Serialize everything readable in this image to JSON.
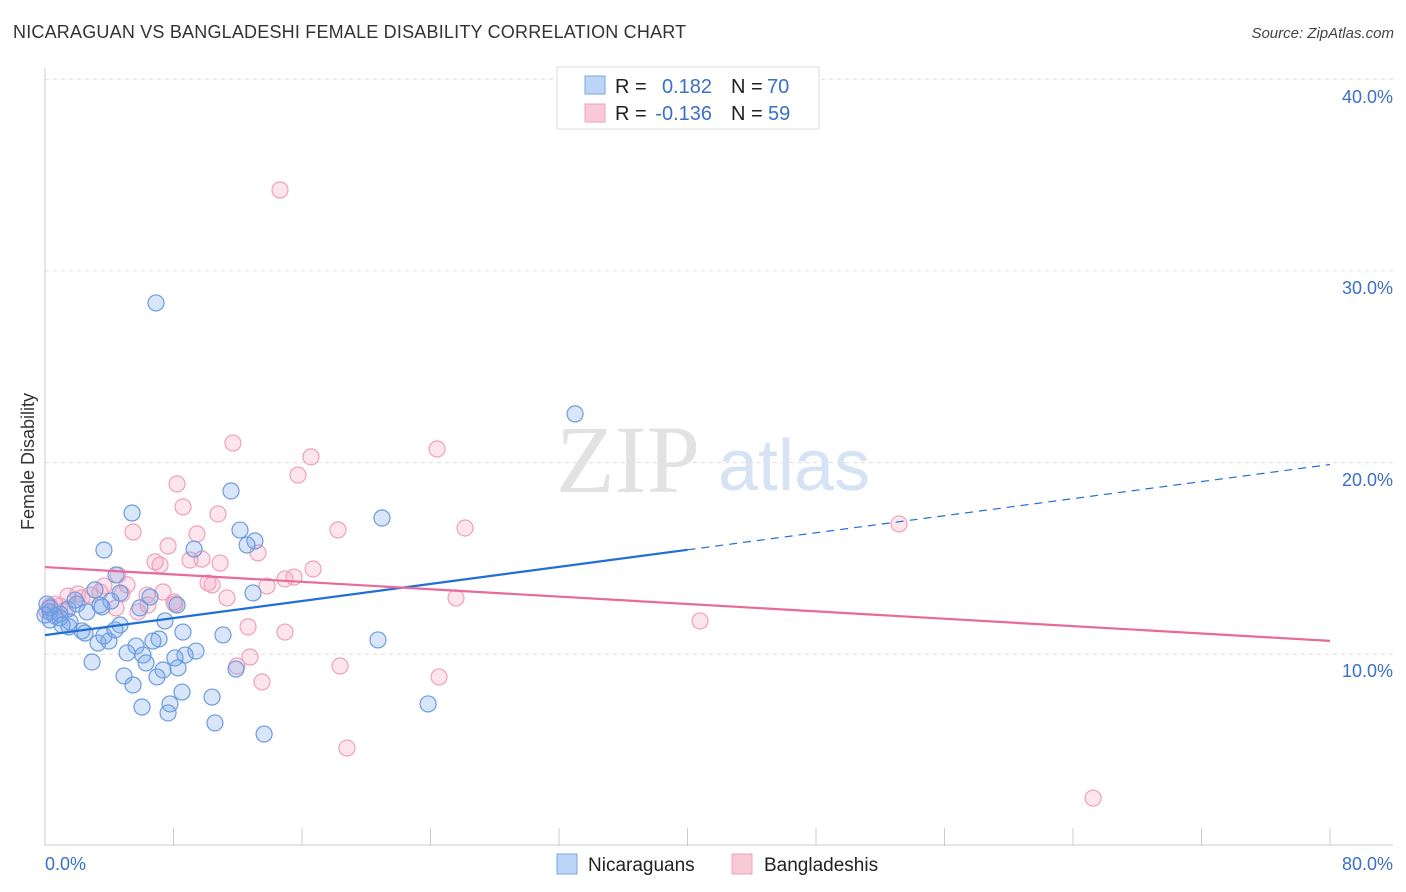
{
  "title": "NICARAGUAN VS BANGLADESHI FEMALE DISABILITY CORRELATION CHART",
  "source": "Source: ZipAtlas.com",
  "watermark": {
    "zip": "ZIP",
    "atlas": "atlas"
  },
  "colors": {
    "blue": "#6b9be0",
    "blue_line": "#1f6fd6",
    "pink": "#f0a0b8",
    "pink_line": "#e8699a",
    "tick": "#3a70c8"
  },
  "legend": {
    "r_label": "R =",
    "n_label": "N =",
    "rows": [
      {
        "r": "0.182",
        "n": "70"
      },
      {
        "r": "-0.136",
        "n": "59"
      }
    ]
  },
  "chart_data": {
    "type": "scatter",
    "title": "NICARAGUAN VS BANGLADESHI FEMALE DISABILITY CORRELATION CHART",
    "xlabel": "",
    "ylabel": "Female Disability",
    "xlim": [
      0,
      80
    ],
    "ylim": [
      0,
      40
    ],
    "x_tick_labels": [
      "0.0%",
      "80.0%"
    ],
    "y_ticks": [
      10,
      20,
      30,
      40
    ],
    "y_tick_labels": [
      "10.0%",
      "20.0%",
      "30.0%",
      "40.0%"
    ],
    "grid": true,
    "legend_position": "top-center",
    "series": [
      {
        "name": "Nicaraguans",
        "trend": {
          "x0": 0,
          "y0": 11.0,
          "x1": 80,
          "y1": 19.9,
          "solid_until": 40
        },
        "points": [
          [
            6.91,
            28.33
          ],
          [
            33.0,
            22.54
          ],
          [
            11.58,
            18.52
          ],
          [
            5.42,
            17.37
          ],
          [
            20.98,
            17.11
          ],
          [
            12.14,
            16.48
          ],
          [
            13.07,
            15.91
          ],
          [
            12.58,
            15.7
          ],
          [
            3.67,
            15.44
          ],
          [
            9.28,
            15.49
          ],
          [
            4.42,
            14.14
          ],
          [
            3.11,
            13.36
          ],
          [
            4.67,
            13.2
          ],
          [
            6.54,
            12.99
          ],
          [
            4.11,
            12.78
          ],
          [
            1.99,
            12.62
          ],
          [
            3.42,
            12.57
          ],
          [
            1.43,
            12.36
          ],
          [
            0.93,
            12.1
          ],
          [
            8.22,
            12.57
          ],
          [
            5.91,
            12.42
          ],
          [
            0.31,
            12.21
          ],
          [
            0.62,
            12.0
          ],
          [
            7.47,
            11.74
          ],
          [
            4.67,
            11.53
          ],
          [
            1.49,
            11.43
          ],
          [
            2.3,
            11.22
          ],
          [
            2.49,
            11.11
          ],
          [
            8.59,
            11.16
          ],
          [
            11.08,
            11.01
          ],
          [
            7.1,
            10.8
          ],
          [
            6.72,
            10.69
          ],
          [
            20.73,
            10.75
          ],
          [
            3.3,
            10.59
          ],
          [
            3.98,
            10.69
          ],
          [
            5.67,
            10.43
          ],
          [
            5.11,
            10.07
          ],
          [
            9.4,
            10.17
          ],
          [
            8.72,
            9.96
          ],
          [
            6.1,
            9.96
          ],
          [
            8.09,
            9.81
          ],
          [
            6.29,
            9.55
          ],
          [
            2.93,
            9.6
          ],
          [
            7.35,
            9.18
          ],
          [
            8.28,
            9.29
          ],
          [
            11.89,
            9.23
          ],
          [
            4.92,
            8.87
          ],
          [
            6.97,
            8.82
          ],
          [
            8.53,
            8.03
          ],
          [
            5.48,
            8.4
          ],
          [
            10.4,
            7.77
          ],
          [
            23.85,
            7.41
          ],
          [
            6.04,
            7.25
          ],
          [
            7.78,
            7.41
          ],
          [
            7.66,
            6.94
          ],
          [
            10.58,
            6.42
          ],
          [
            13.64,
            5.84
          ],
          [
            0.12,
            12.62
          ],
          [
            0.31,
            11.79
          ],
          [
            0,
            12.05
          ],
          [
            0.93,
            11.9
          ],
          [
            1.56,
            11.69
          ],
          [
            2.61,
            12.21
          ],
          [
            3.67,
            10.96
          ],
          [
            12.95,
            13.2
          ],
          [
            0.31,
            12.42
          ],
          [
            1.87,
            12.83
          ],
          [
            4.36,
            11.27
          ],
          [
            1.06,
            11.53
          ],
          [
            3.55,
            12.47
          ]
        ]
      },
      {
        "name": "Bangladeshis",
        "trend": {
          "x0": 0,
          "y0": 14.55,
          "x1": 80,
          "y1": 10.7,
          "solid_until": 80
        },
        "points": [
          [
            14.63,
            34.22
          ],
          [
            11.7,
            21.02
          ],
          [
            24.41,
            20.71
          ],
          [
            16.56,
            20.3
          ],
          [
            15.75,
            19.35
          ],
          [
            8.22,
            18.89
          ],
          [
            8.59,
            17.69
          ],
          [
            10.77,
            17.32
          ],
          [
            26.15,
            16.59
          ],
          [
            18.24,
            16.49
          ],
          [
            53.17,
            16.8
          ],
          [
            5.48,
            16.38
          ],
          [
            9.46,
            16.28
          ],
          [
            13.26,
            15.29
          ],
          [
            7.66,
            15.65
          ],
          [
            6.85,
            14.82
          ],
          [
            7.16,
            14.66
          ],
          [
            9.03,
            14.92
          ],
          [
            9.77,
            14.97
          ],
          [
            10.9,
            14.76
          ],
          [
            16.69,
            14.45
          ],
          [
            4.55,
            14.14
          ],
          [
            15.5,
            14.03
          ],
          [
            14.94,
            13.93
          ],
          [
            3.67,
            13.56
          ],
          [
            5.11,
            13.62
          ],
          [
            13.82,
            13.56
          ],
          [
            10.15,
            13.72
          ],
          [
            10.4,
            13.62
          ],
          [
            7.35,
            13.25
          ],
          [
            4.79,
            13.15
          ],
          [
            6.35,
            13.09
          ],
          [
            3.42,
            13.25
          ],
          [
            2.05,
            13.15
          ],
          [
            2.8,
            13.09
          ],
          [
            1.43,
            13.04
          ],
          [
            0.62,
            12.62
          ],
          [
            0.93,
            12.52
          ],
          [
            6.41,
            12.57
          ],
          [
            8.09,
            12.62
          ],
          [
            11.33,
            12.94
          ],
          [
            8.03,
            12.73
          ],
          [
            25.59,
            12.94
          ],
          [
            5.79,
            12.21
          ],
          [
            0.12,
            12.26
          ],
          [
            40.78,
            11.74
          ],
          [
            12.64,
            11.43
          ],
          [
            14.94,
            11.16
          ],
          [
            4.42,
            12.42
          ],
          [
            12.76,
            9.86
          ],
          [
            18.37,
            9.39
          ],
          [
            11.95,
            9.39
          ],
          [
            13.51,
            8.56
          ],
          [
            24.53,
            8.82
          ],
          [
            18.8,
            5.11
          ],
          [
            65.25,
            2.5
          ],
          [
            0.31,
            12.52
          ],
          [
            1.25,
            12.31
          ],
          [
            2.3,
            12.94
          ]
        ]
      }
    ]
  }
}
